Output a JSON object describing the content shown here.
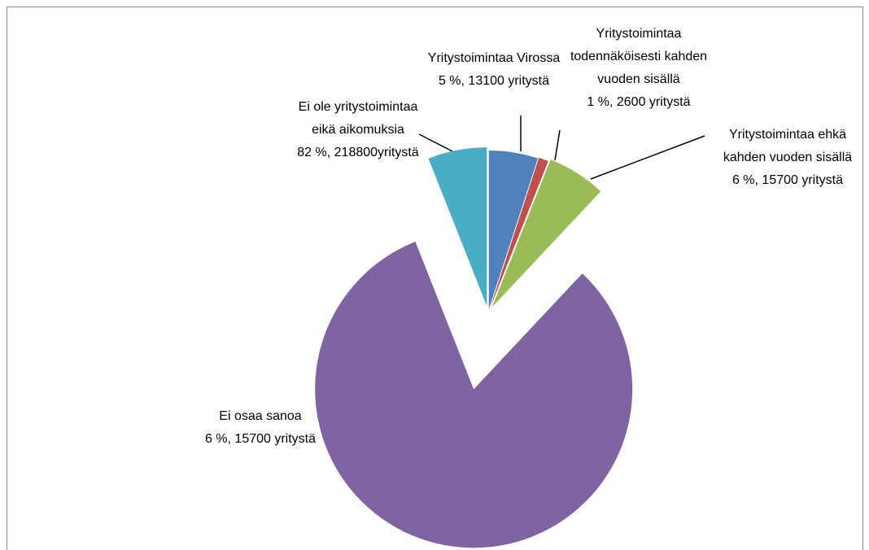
{
  "chart_data": {
    "type": "pie",
    "categories": [
      "Yritystoimintaa Virossa",
      "Yritystoimintaa todennäköisesti kahden vuoden sisällä",
      "Yritystoimintaa ehkä kahden vuoden sisällä",
      "Ei ole yritystoimintaa eikä aikomuksia",
      "Ei osaa sanoa"
    ],
    "values": [
      5,
      1,
      6,
      82,
      6
    ],
    "value_labels": [
      "5 %, 13100 yritystä",
      "1 %, 2600 yritystä",
      "6 %, 15700 yritystä",
      "82 %, 218800yritystä",
      "6 %, 15700 yritystä"
    ],
    "colors": [
      "#4f81bd",
      "#c0504d",
      "#9bbb59",
      "#8064a2",
      "#4bacc6"
    ]
  }
}
